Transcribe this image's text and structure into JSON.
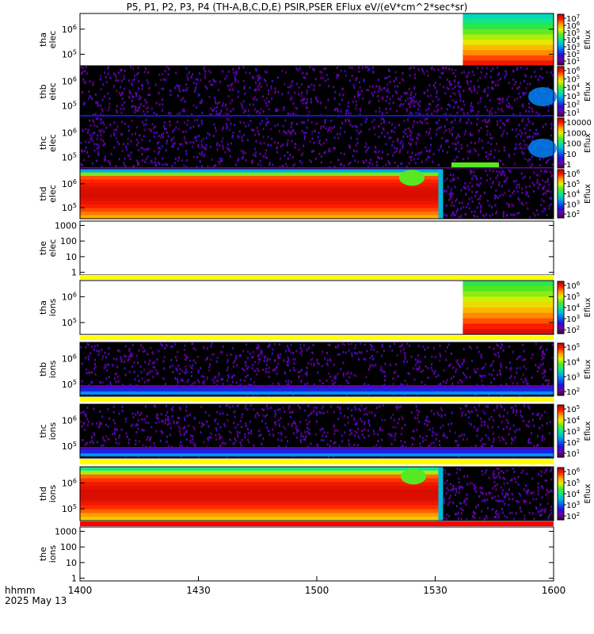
{
  "title": "P5, P1, P2, P3, P4 (TH-A,B,C,D,E) PSIR,PSER EFlux eV/(eV*cm^2*sec*sr)",
  "colorbar_label": "Eflux",
  "footer": {
    "axis_id": "hhmm",
    "date": "2025 May 13"
  },
  "chart_data": {
    "type": "heatmap",
    "x_ticks": [
      "1400",
      "1430",
      "1500",
      "1530",
      "1600"
    ],
    "x_range_minutes": [
      0,
      120
    ],
    "panels": [
      {
        "label": [
          "tha",
          "elec"
        ],
        "y_ticks": [
          "10^6",
          "10^5"
        ],
        "cbar_ticks": [
          "10^7",
          "10^6",
          "10^5",
          "10^4",
          "10^3",
          "10^2",
          "10^1"
        ],
        "pattern": "tha-elec",
        "data_start_minute": 97,
        "has_flag_bar": false
      },
      {
        "label": [
          "thb",
          "elec"
        ],
        "y_ticks": [
          "10^6",
          "10^5"
        ],
        "cbar_ticks": [
          "10^6",
          "10^5",
          "10^4",
          "10^3",
          "10^2",
          "10^1"
        ],
        "pattern": "sparse-elec",
        "has_flag_bar": false
      },
      {
        "label": [
          "thc",
          "elec"
        ],
        "y_ticks": [
          "10^6",
          "10^5"
        ],
        "cbar_ticks": [
          "10000",
          "1000",
          "100",
          "10",
          "1"
        ],
        "pattern": "sparse-elec2",
        "has_flag_bar": false
      },
      {
        "label": [
          "thd",
          "elec"
        ],
        "y_ticks": [
          "10^6",
          "10^5"
        ],
        "cbar_ticks": [
          "10^6",
          "10^5",
          "10^4",
          "10^3",
          "10^2"
        ],
        "pattern": "thd-elec",
        "data_end_minute": 92,
        "has_flag_bar": false
      },
      {
        "label": [
          "the",
          "elec"
        ],
        "y_ticks": [
          "1000",
          "100",
          "10",
          "1"
        ],
        "cbar_ticks": [],
        "pattern": "empty",
        "has_flag_bar": true,
        "flag_color": "#ffff00"
      },
      {
        "label": [
          "tha",
          "ions"
        ],
        "y_ticks": [
          "10^6",
          "10^5"
        ],
        "cbar_ticks": [
          "10^6",
          "10^5",
          "10^4",
          "10^3",
          "10^2"
        ],
        "pattern": "tha-ions",
        "data_start_minute": 97,
        "has_flag_bar": true,
        "flag_color": "#ffff00"
      },
      {
        "label": [
          "thb",
          "ions"
        ],
        "y_ticks": [
          "10^6",
          "10^5"
        ],
        "cbar_ticks": [
          "10^5",
          "10^4",
          "10^3",
          "10^2"
        ],
        "pattern": "sparse-ions",
        "has_flag_bar": true,
        "flag_color": "#ffff00"
      },
      {
        "label": [
          "thc",
          "ions"
        ],
        "y_ticks": [
          "10^6",
          "10^5"
        ],
        "cbar_ticks": [
          "10^5",
          "10^4",
          "10^3",
          "10^2",
          "10^1"
        ],
        "pattern": "sparse-ions2",
        "has_flag_bar": true,
        "flag_color": "#ffff00"
      },
      {
        "label": [
          "thd",
          "ions"
        ],
        "y_ticks": [
          "10^6",
          "10^5"
        ],
        "cbar_ticks": [
          "10^6",
          "10^5",
          "10^4",
          "10^3",
          "10^2"
        ],
        "pattern": "thd-ions",
        "data_end_minute": 92,
        "has_flag_bar": true,
        "flag_color": "#ff0000"
      },
      {
        "label": [
          "the",
          "ions"
        ],
        "y_ticks": [
          "1000",
          "100",
          "10",
          "1"
        ],
        "cbar_ticks": [],
        "pattern": "empty",
        "has_flag_bar": false
      }
    ]
  }
}
